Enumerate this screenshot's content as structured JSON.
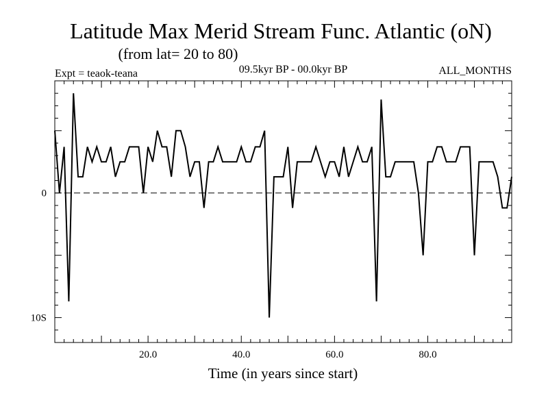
{
  "chart_data": {
    "type": "line",
    "title": "Latitude Max Merid Stream Func. Atlantic (oN)",
    "subtitle": "(from lat= 20 to 80)",
    "experiment": "Expt = teaok-teana",
    "period": "09.5kyr BP - 00.0kyr BP",
    "season": "ALL_MONTHS",
    "xlabel": "Time (in years since start)",
    "ylabel": "",
    "xlim": [
      0,
      98
    ],
    "ylim": [
      -12,
      9
    ],
    "x_ticks": [
      20,
      40,
      60,
      80
    ],
    "x_tick_labels": [
      "20.0",
      "40.0",
      "60.0",
      "80.0"
    ],
    "y_ticks": [
      0,
      -10
    ],
    "y_tick_labels": [
      "0",
      "10S"
    ],
    "reference_line": 0,
    "x": [
      0,
      1,
      2,
      3,
      4,
      5,
      6,
      7,
      8,
      9,
      10,
      11,
      12,
      13,
      14,
      15,
      16,
      17,
      18,
      19,
      20,
      21,
      22,
      23,
      24,
      25,
      26,
      27,
      28,
      29,
      30,
      31,
      32,
      33,
      34,
      35,
      36,
      37,
      38,
      39,
      40,
      41,
      42,
      43,
      44,
      45,
      46,
      47,
      48,
      49,
      50,
      51,
      52,
      53,
      54,
      55,
      56,
      57,
      58,
      59,
      60,
      61,
      62,
      63,
      64,
      65,
      66,
      67,
      68,
      69,
      70,
      71,
      72,
      73,
      74,
      75,
      76,
      77,
      78,
      79,
      80,
      81,
      82,
      83,
      84,
      85,
      86,
      87,
      88,
      89,
      90,
      91,
      92,
      93,
      94,
      95,
      96,
      97,
      98
    ],
    "values": [
      5,
      0,
      3.7,
      -8.7,
      8,
      1.3,
      1.3,
      3.7,
      2.5,
      3.7,
      2.5,
      2.5,
      3.7,
      1.3,
      2.5,
      2.5,
      3.7,
      3.7,
      3.7,
      0,
      3.7,
      2.5,
      5,
      3.7,
      3.7,
      1.3,
      5,
      5,
      3.7,
      1.3,
      2.5,
      2.5,
      -1.2,
      2.5,
      2.5,
      3.7,
      2.5,
      2.5,
      2.5,
      2.5,
      3.7,
      2.5,
      2.5,
      3.7,
      3.7,
      5,
      -10,
      1.3,
      1.3,
      1.3,
      3.7,
      -1.2,
      2.5,
      2.5,
      2.5,
      2.5,
      3.7,
      2.5,
      1.3,
      2.5,
      2.5,
      1.3,
      3.7,
      1.3,
      2.5,
      3.7,
      2.5,
      2.5,
      3.7,
      -8.7,
      7.5,
      1.3,
      1.3,
      2.5,
      2.5,
      2.5,
      2.5,
      2.5,
      0,
      -5,
      2.5,
      2.5,
      3.7,
      3.7,
      2.5,
      2.5,
      2.5,
      3.7,
      3.7,
      3.7,
      -5,
      2.5,
      2.5,
      2.5,
      2.5,
      1.3,
      -1.2,
      -1.2,
      1.3
    ]
  }
}
